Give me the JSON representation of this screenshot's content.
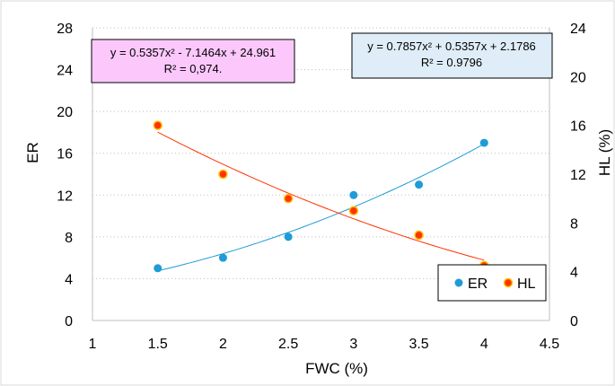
{
  "chart_data": {
    "type": "scatter",
    "xlabel": "FWC (%)",
    "ylabel_left": "ER",
    "ylabel_right": "HL (%)",
    "xlim": [
      1,
      4.5
    ],
    "ylim_left": [
      0,
      28
    ],
    "ylim_right": [
      0,
      24
    ],
    "x_ticks": [
      "1",
      "1.5",
      "2",
      "2.5",
      "3",
      "3.5",
      "4",
      "4.5"
    ],
    "y_left_ticks": [
      "0",
      "4",
      "8",
      "12",
      "16",
      "20",
      "24",
      "28"
    ],
    "y_right_ticks": [
      "0",
      "4",
      "8",
      "12",
      "16",
      "20",
      "24"
    ],
    "grid": "horizontal dotted",
    "legend_position": "bottom-right",
    "series": [
      {
        "name": "ER",
        "axis": "left",
        "color": "#1f9bd7",
        "trendline_color": "#1f9bd7",
        "x": [
          1.5,
          2,
          2.5,
          3,
          3.5,
          4
        ],
        "values": [
          5,
          6,
          8,
          12,
          13,
          17
        ],
        "trendline": {
          "type": "polynomial",
          "coefficients": [
            0.7857,
            0.5357,
            2.1786
          ]
        }
      },
      {
        "name": "HL",
        "axis": "right",
        "color": "#ff3300",
        "trendline_color": "#ff3300",
        "x": [
          1.5,
          2,
          2.5,
          3,
          3.5,
          4
        ],
        "values": [
          16,
          12,
          10,
          9,
          7,
          4.5
        ],
        "trendline": {
          "type": "polynomial",
          "coefficients": [
            0.5357,
            -7.1464,
            24.961
          ]
        }
      }
    ],
    "annotations": [
      {
        "id": "hl-equation",
        "line1": "y = 0.5357x² - 7.1464x + 24.961",
        "line2": "R² = 0,974.",
        "background": "#fcc8fc"
      },
      {
        "id": "er-equation",
        "line1": "y = 0.7857x² + 0.5357x + 2.1786",
        "line2": "R² = 0.9796",
        "background": "#deedf7"
      }
    ]
  }
}
